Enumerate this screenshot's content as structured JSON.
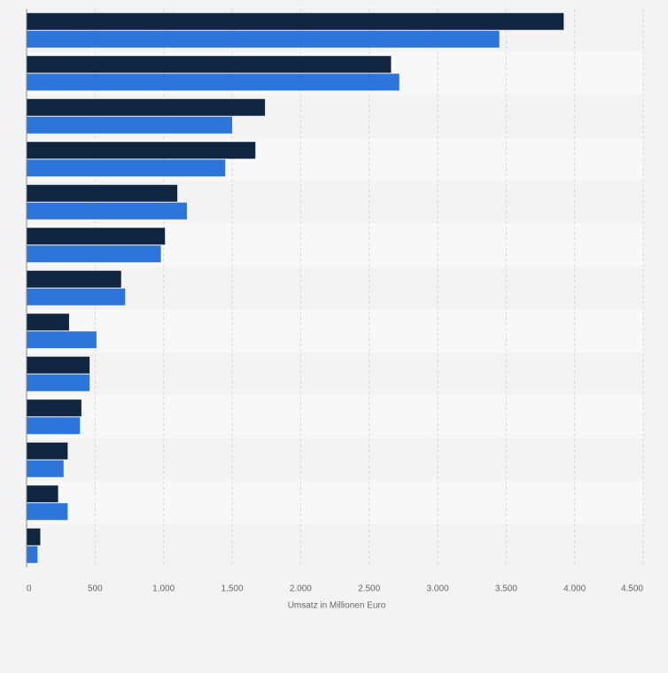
{
  "chart_data": {
    "type": "bar",
    "orientation": "horizontal",
    "categories": [
      "",
      "",
      "",
      "",
      "",
      "",
      "",
      "",
      "",
      "",
      "",
      "",
      ""
    ],
    "series": [
      {
        "color": "#0f2540",
        "values": [
          3920,
          2660,
          1740,
          1670,
          1100,
          1010,
          690,
          310,
          460,
          400,
          300,
          230,
          100
        ]
      },
      {
        "color": "#2e75d9",
        "values": [
          3450,
          2720,
          1500,
          1450,
          1170,
          980,
          720,
          510,
          460,
          390,
          270,
          300,
          80
        ]
      }
    ],
    "xlabel": "Umsatz in Millionen Euro",
    "xlim": [
      0,
      4500
    ],
    "xticks": [
      0,
      500,
      1000,
      1500,
      2000,
      2500,
      3000,
      3500,
      4000,
      4500
    ],
    "xtick_labels": [
      "0",
      "500",
      "1.000",
      "1.500",
      "2.000",
      "2.500",
      "3.000",
      "3.500",
      "4.000",
      "4.500"
    ],
    "grid": true,
    "legend": "none"
  },
  "colors": {
    "background": "#f3f3f3",
    "band_alt": "#f8f8f8",
    "grid": "#d6d6d6"
  }
}
